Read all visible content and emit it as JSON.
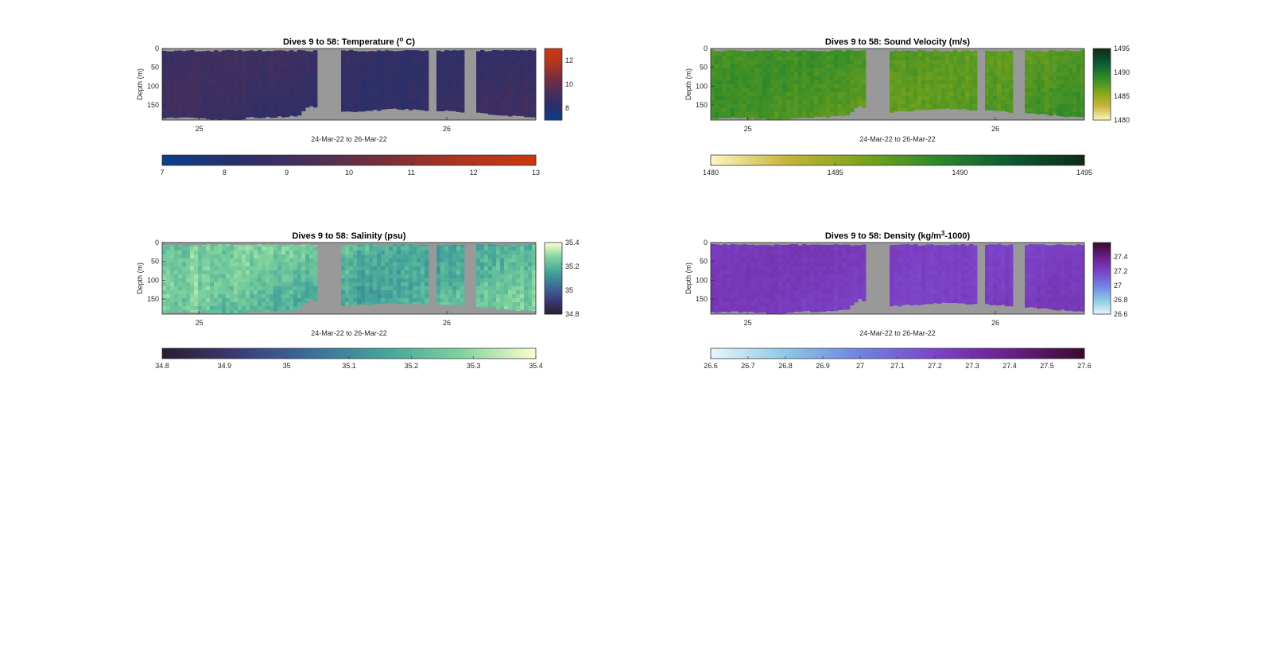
{
  "chart_data": [
    {
      "type": "heatmap",
      "id": "temperature",
      "title_main": "Dives 9 to 58: Temperature (",
      "title_sup": "o",
      "title_end": " C)",
      "xlabel": "24-Mar-22 to 26-Mar-22",
      "ylabel": "Depth (m)",
      "x_ticks": [
        "25",
        "26"
      ],
      "x_tick_values": [
        25,
        26
      ],
      "xlim": [
        24.85,
        26.36
      ],
      "y_ticks": [
        "0",
        "50",
        "100",
        "150"
      ],
      "y_tick_values": [
        0,
        50,
        100,
        150
      ],
      "ylim": [
        0,
        190
      ],
      "bottom_depth_profile": [
        [
          24.85,
          185
        ],
        [
          24.96,
          183
        ],
        [
          25.06,
          187
        ],
        [
          25.14,
          190
        ],
        [
          25.2,
          183
        ],
        [
          25.3,
          182
        ],
        [
          25.4,
          178
        ],
        [
          25.45,
          150
        ],
        [
          25.5,
          165
        ],
        [
          25.53,
          170
        ],
        [
          25.8,
          160
        ],
        [
          26.0,
          165
        ],
        [
          26.1,
          170
        ],
        [
          26.36,
          183
        ]
      ],
      "gaps": [
        [
          25.48,
          25.57
        ],
        [
          25.93,
          25.96
        ],
        [
          26.07,
          26.12
        ]
      ],
      "field_value_range": [
        7.8,
        9.4
      ],
      "colorbar_side": {
        "ticks": [
          "8",
          "10",
          "12"
        ],
        "values": [
          8,
          10,
          12
        ],
        "lim": [
          7,
          13
        ]
      },
      "colorbar_bottom": {
        "ticks": [
          "7",
          "8",
          "9",
          "10",
          "11",
          "12",
          "13"
        ],
        "values": [
          7,
          8,
          9,
          10,
          11,
          12,
          13
        ],
        "lim": [
          7,
          13
        ]
      },
      "colormap": [
        "#0a3f8c",
        "#2a2f6a",
        "#4a2f5a",
        "#7a2e3a",
        "#b03520",
        "#c8390f"
      ]
    },
    {
      "type": "heatmap",
      "id": "sound-velocity",
      "title_main": "Dives 9 to 58: Sound Velocity (m/s)",
      "title_sup": "",
      "title_end": "",
      "xlabel": "24-Mar-22 to 26-Mar-22",
      "ylabel": "Depth (m)",
      "x_ticks": [
        "25",
        "26"
      ],
      "x_tick_values": [
        25,
        26
      ],
      "xlim": [
        24.85,
        26.36
      ],
      "y_ticks": [
        "0",
        "50",
        "100",
        "150"
      ],
      "y_tick_values": [
        0,
        50,
        100,
        150
      ],
      "ylim": [
        0,
        190
      ],
      "bottom_depth_profile": [
        [
          24.85,
          185
        ],
        [
          24.96,
          183
        ],
        [
          25.06,
          187
        ],
        [
          25.14,
          190
        ],
        [
          25.2,
          183
        ],
        [
          25.3,
          182
        ],
        [
          25.4,
          178
        ],
        [
          25.45,
          150
        ],
        [
          25.5,
          165
        ],
        [
          25.53,
          170
        ],
        [
          25.8,
          160
        ],
        [
          26.0,
          165
        ],
        [
          26.1,
          170
        ],
        [
          26.36,
          183
        ]
      ],
      "gaps": [
        [
          25.48,
          25.57
        ],
        [
          25.93,
          25.96
        ],
        [
          26.07,
          26.12
        ]
      ],
      "field_value_range": [
        1485.5,
        1489.5
      ],
      "colorbar_side": {
        "ticks": [
          "1480",
          "1485",
          "1490",
          "1495"
        ],
        "values": [
          1480,
          1485,
          1490,
          1495
        ],
        "lim": [
          1480,
          1495
        ]
      },
      "colorbar_bottom": {
        "ticks": [
          "1480",
          "1485",
          "1490",
          "1495"
        ],
        "values": [
          1480,
          1485,
          1490,
          1495
        ],
        "lim": [
          1480,
          1495
        ]
      },
      "colormap": [
        "#fdf6c3",
        "#c8b43a",
        "#7ea51a",
        "#2f8a2a",
        "#0d5a32",
        "#102a18"
      ]
    },
    {
      "type": "heatmap",
      "id": "salinity",
      "title_main": "Dives 9 to 58: Salinity (psu)",
      "title_sup": "",
      "title_end": "",
      "xlabel": "24-Mar-22 to 26-Mar-22",
      "ylabel": "Depth (m)",
      "x_ticks": [
        "25",
        "26"
      ],
      "x_tick_values": [
        25,
        26
      ],
      "xlim": [
        24.85,
        26.36
      ],
      "y_ticks": [
        "0",
        "50",
        "100",
        "150"
      ],
      "y_tick_values": [
        0,
        50,
        100,
        150
      ],
      "ylim": [
        0,
        190
      ],
      "bottom_depth_profile": [
        [
          24.85,
          185
        ],
        [
          24.96,
          183
        ],
        [
          25.06,
          187
        ],
        [
          25.14,
          190
        ],
        [
          25.2,
          183
        ],
        [
          25.3,
          182
        ],
        [
          25.4,
          178
        ],
        [
          25.45,
          150
        ],
        [
          25.5,
          165
        ],
        [
          25.53,
          170
        ],
        [
          25.8,
          160
        ],
        [
          26.0,
          165
        ],
        [
          26.1,
          170
        ],
        [
          26.36,
          183
        ]
      ],
      "gaps": [
        [
          25.48,
          25.57
        ],
        [
          25.93,
          25.96
        ],
        [
          26.07,
          26.12
        ]
      ],
      "field_value_range": [
        35.05,
        35.35
      ],
      "colorbar_side": {
        "ticks": [
          "34.8",
          "35",
          "35.2",
          "35.4"
        ],
        "values": [
          34.8,
          35,
          35.2,
          35.4
        ],
        "lim": [
          34.8,
          35.4
        ]
      },
      "colorbar_bottom": {
        "ticks": [
          "34.8",
          "34.9",
          "35",
          "35.1",
          "35.2",
          "35.3",
          "35.4"
        ],
        "values": [
          34.8,
          34.9,
          35,
          35.1,
          35.2,
          35.3,
          35.4
        ],
        "lim": [
          34.8,
          35.4
        ]
      },
      "colormap": [
        "#2a1d2e",
        "#3b3a78",
        "#3a6f9a",
        "#44a59a",
        "#7fd39c",
        "#fdfdcf"
      ]
    },
    {
      "type": "heatmap",
      "id": "density",
      "title_main": "Dives 9 to 58: Density (kg/m",
      "title_sup": "3",
      "title_end": "-1000)",
      "xlabel": "24-Mar-22 to 26-Mar-22",
      "ylabel": "Depth (m)",
      "x_ticks": [
        "25",
        "26"
      ],
      "x_tick_values": [
        25,
        26
      ],
      "xlim": [
        24.85,
        26.36
      ],
      "y_ticks": [
        "0",
        "50",
        "100",
        "150"
      ],
      "y_tick_values": [
        0,
        50,
        100,
        150
      ],
      "ylim": [
        0,
        190
      ],
      "bottom_depth_profile": [
        [
          24.85,
          185
        ],
        [
          24.96,
          183
        ],
        [
          25.06,
          187
        ],
        [
          25.14,
          190
        ],
        [
          25.2,
          183
        ],
        [
          25.3,
          182
        ],
        [
          25.4,
          178
        ],
        [
          25.45,
          150
        ],
        [
          25.5,
          165
        ],
        [
          25.53,
          170
        ],
        [
          25.8,
          160
        ],
        [
          26.0,
          165
        ],
        [
          26.1,
          170
        ],
        [
          26.36,
          183
        ]
      ],
      "gaps": [
        [
          25.48,
          25.57
        ],
        [
          25.93,
          25.96
        ],
        [
          26.07,
          26.12
        ]
      ],
      "field_value_range": [
        27.15,
        27.3
      ],
      "colorbar_side": {
        "ticks": [
          "26.6",
          "26.8",
          "27",
          "27.2",
          "27.4"
        ],
        "values": [
          26.6,
          26.8,
          27,
          27.2,
          27.4
        ],
        "lim": [
          26.6,
          27.6
        ]
      },
      "colorbar_bottom": {
        "ticks": [
          "26.6",
          "26.7",
          "26.8",
          "26.9",
          "27",
          "27.1",
          "27.2",
          "27.3",
          "27.4",
          "27.5",
          "27.6"
        ],
        "values": [
          26.6,
          26.7,
          26.8,
          26.9,
          27,
          27.1,
          27.2,
          27.3,
          27.4,
          27.5,
          27.6
        ],
        "lim": [
          26.6,
          27.6
        ]
      },
      "colormap": [
        "#e8f6fb",
        "#8cc8e6",
        "#6f83e3",
        "#7c43c9",
        "#6a1f8a",
        "#3a0a2e"
      ]
    }
  ]
}
